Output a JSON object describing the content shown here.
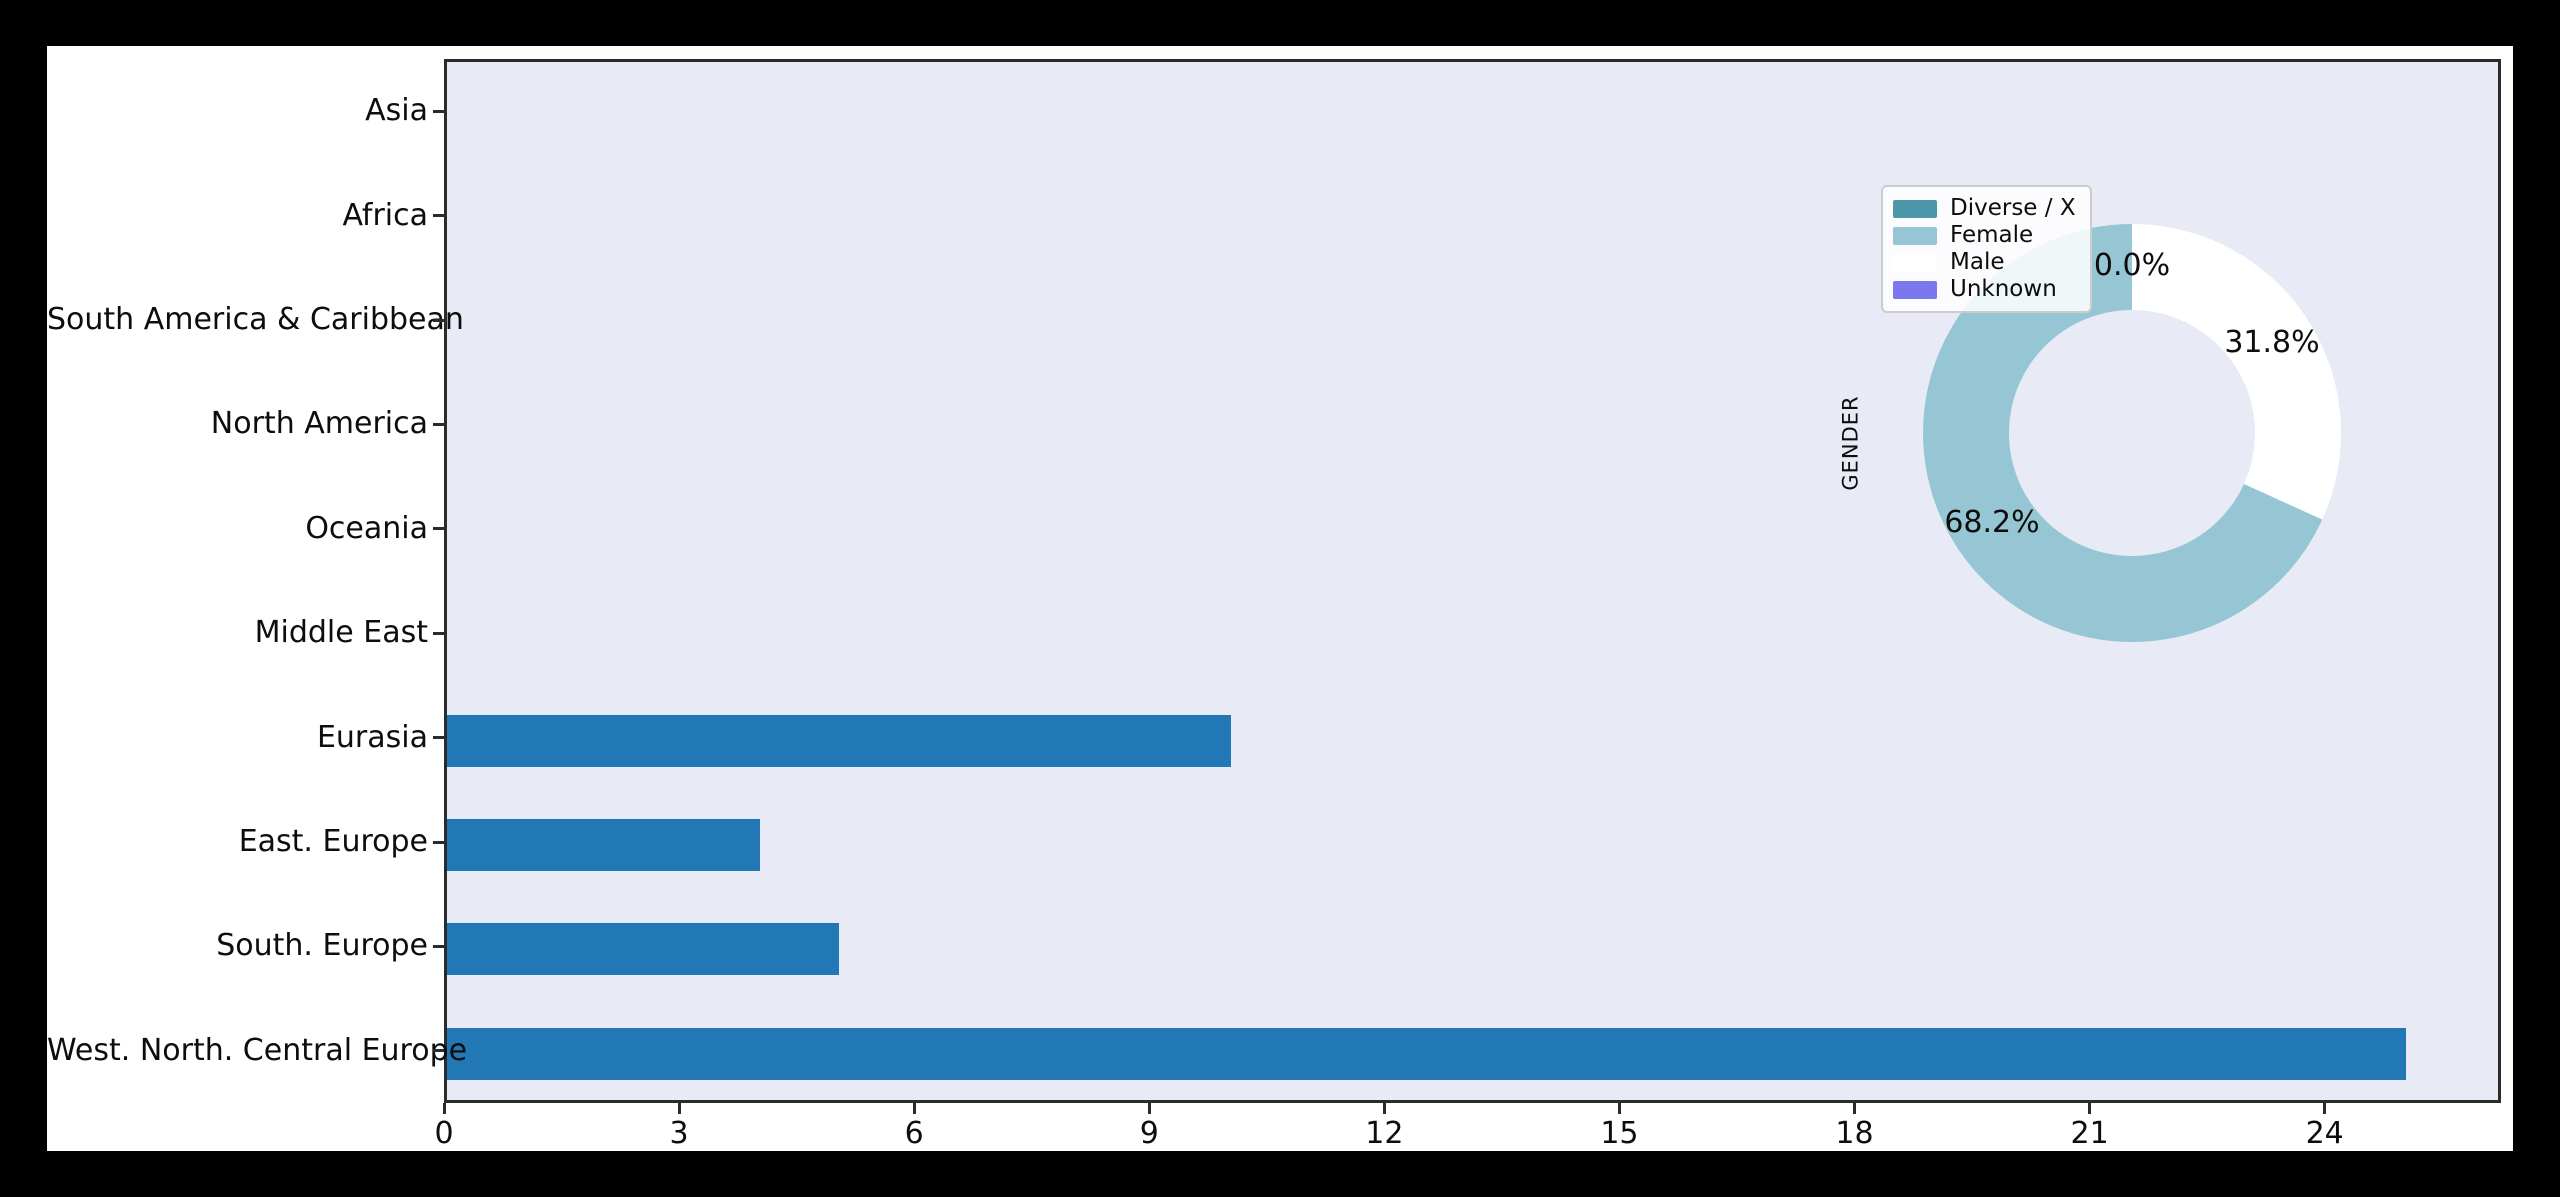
{
  "chart_data": [
    {
      "type": "bar",
      "orientation": "horizontal",
      "title": "",
      "xlabel": "",
      "ylabel": "",
      "categories": [
        "Asia",
        "Africa",
        "South America & Caribbean",
        "North America",
        "Oceania",
        "Middle East",
        "Eurasia",
        "East. Europe",
        "South. Europe",
        "West. North. Central Europe"
      ],
      "values": [
        0,
        0,
        0,
        0,
        0,
        0,
        10,
        4,
        5,
        25
      ],
      "xlim": [
        0,
        26.25
      ],
      "x_ticks": [
        0,
        3,
        6,
        9,
        12,
        15,
        18,
        21,
        24
      ],
      "grid": false,
      "bar_color": "#2278b5",
      "plot_bg": "#e8ebf5",
      "legend_position": "none"
    },
    {
      "type": "pie",
      "donut": true,
      "axis_label": "GENDER",
      "start_angle": 90,
      "direction": "counterclockwise",
      "slices": [
        {
          "label": "Diverse / X",
          "pct": 0.0,
          "color": "#4b96a9"
        },
        {
          "label": "Female",
          "pct": 68.2,
          "color": "#96c6d4"
        },
        {
          "label": "Male",
          "pct": 31.8,
          "color": "#ffffff"
        },
        {
          "label": "Unknown",
          "pct": 0.0,
          "color": "#7c77ef"
        }
      ],
      "visible_pct_labels": [
        "0.0%",
        "31.8%",
        "68.2%"
      ],
      "legend_position": "upper-left",
      "legend_items": [
        "Diverse / X",
        "Female",
        "Male",
        "Unknown"
      ]
    }
  ]
}
